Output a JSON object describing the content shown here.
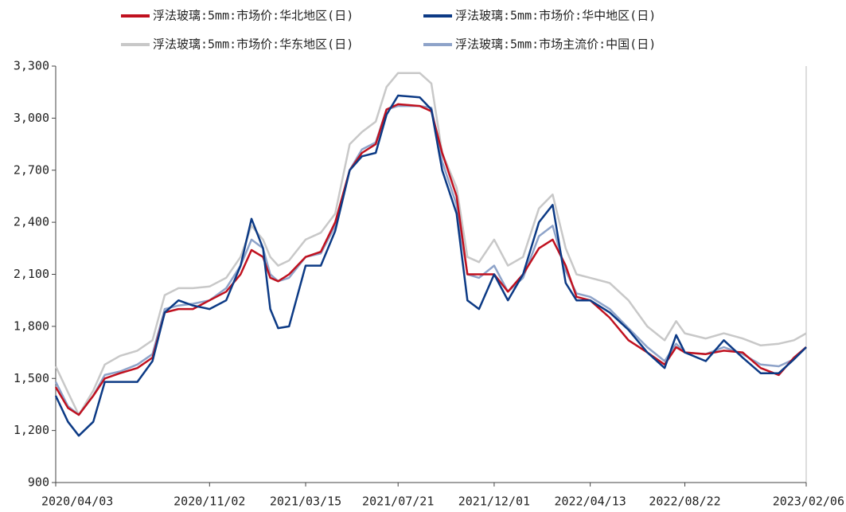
{
  "chart_data": {
    "type": "line",
    "x": [
      "2020/04/03",
      "2020/04/20",
      "2020/05/05",
      "2020/05/25",
      "2020/06/10",
      "2020/07/01",
      "2020/07/25",
      "2020/08/15",
      "2020/09/01",
      "2020/09/20",
      "2020/10/10",
      "2020/11/02",
      "2020/11/25",
      "2020/12/15",
      "2020/12/30",
      "2021/01/15",
      "2021/01/25",
      "2021/02/05",
      "2021/02/20",
      "2021/03/15",
      "2021/04/05",
      "2021/04/25",
      "2021/05/15",
      "2021/06/01",
      "2021/06/20",
      "2021/07/05",
      "2021/07/21",
      "2021/08/20",
      "2021/09/05",
      "2021/09/20",
      "2021/10/10",
      "2021/10/25",
      "2021/11/10",
      "2021/12/01",
      "2021/12/20",
      "2022/01/10",
      "2022/02/01",
      "2022/02/20",
      "2022/03/10",
      "2022/03/25",
      "2022/04/13",
      "2022/05/10",
      "2022/06/05",
      "2022/07/01",
      "2022/07/25",
      "2022/08/10",
      "2022/08/22",
      "2022/09/20",
      "2022/10/15",
      "2022/11/10",
      "2022/12/05",
      "2022/12/30",
      "2023/01/20",
      "2023/02/06"
    ],
    "series": [
      {
        "name": "浮法玻璃:5mm:市场价:华东地区(日)",
        "color": "#c8c8c8",
        "values": [
          1570,
          1420,
          1290,
          1430,
          1580,
          1630,
          1660,
          1720,
          1980,
          2020,
          2020,
          2030,
          2080,
          2200,
          2380,
          2300,
          2200,
          2150,
          2180,
          2300,
          2340,
          2450,
          2850,
          2920,
          2980,
          3180,
          3260,
          3260,
          3200,
          2800,
          2600,
          2200,
          2170,
          2300,
          2150,
          2200,
          2480,
          2560,
          2250,
          2100,
          2080,
          2050,
          1950,
          1800,
          1720,
          1830,
          1760,
          1730,
          1760,
          1730,
          1690,
          1700,
          1720,
          1760
        ]
      },
      {
        "name": "浮法玻璃:5mm:市场主流价:中国(日)",
        "color": "#8ea3c9",
        "values": [
          1480,
          1340,
          1290,
          1400,
          1520,
          1540,
          1580,
          1640,
          1900,
          1920,
          1930,
          1950,
          2020,
          2150,
          2300,
          2250,
          2100,
          2060,
          2080,
          2200,
          2220,
          2380,
          2700,
          2820,
          2860,
          3050,
          3070,
          3070,
          3060,
          2750,
          2500,
          2100,
          2080,
          2150,
          2000,
          2080,
          2320,
          2380,
          2120,
          1990,
          1970,
          1900,
          1790,
          1680,
          1600,
          1700,
          1650,
          1640,
          1680,
          1640,
          1580,
          1570,
          1610,
          1680
        ]
      },
      {
        "name": "浮法玻璃:5mm:市场价:华北地区(日)",
        "color": "#c0111f",
        "values": [
          1450,
          1330,
          1290,
          1400,
          1500,
          1530,
          1560,
          1620,
          1880,
          1900,
          1900,
          1950,
          2000,
          2100,
          2240,
          2200,
          2080,
          2060,
          2100,
          2200,
          2230,
          2400,
          2700,
          2800,
          2850,
          3050,
          3080,
          3070,
          3040,
          2800,
          2550,
          2100,
          2100,
          2100,
          2000,
          2100,
          2250,
          2300,
          2150,
          1970,
          1950,
          1850,
          1720,
          1650,
          1580,
          1680,
          1650,
          1640,
          1660,
          1650,
          1560,
          1520,
          1620,
          1680
        ]
      },
      {
        "name": "浮法玻璃:5mm:市场价:华中地区(日)",
        "color": "#0c3a85",
        "values": [
          1400,
          1250,
          1170,
          1250,
          1480,
          1480,
          1480,
          1600,
          1880,
          1950,
          1920,
          1900,
          1950,
          2150,
          2420,
          2250,
          1900,
          1790,
          1800,
          2150,
          2150,
          2350,
          2700,
          2780,
          2800,
          3020,
          3130,
          3120,
          3050,
          2700,
          2450,
          1950,
          1900,
          2100,
          1950,
          2100,
          2400,
          2500,
          2050,
          1950,
          1950,
          1880,
          1780,
          1650,
          1560,
          1750,
          1650,
          1600,
          1720,
          1620,
          1530,
          1530,
          1610,
          1680
        ]
      }
    ],
    "legend_order": [
      2,
      3,
      0,
      1
    ],
    "xlim": [
      "2020/04/03",
      "2023/02/06"
    ],
    "xticks": [
      "2020/04/03",
      "2020/11/02",
      "2021/03/15",
      "2021/07/21",
      "2021/12/01",
      "2022/04/13",
      "2022/08/22",
      "2023/02/06"
    ],
    "ylim": [
      900,
      3300
    ],
    "yticks": [
      {
        "value": 900,
        "label": "900"
      },
      {
        "value": 1200,
        "label": "1,200"
      },
      {
        "value": 1500,
        "label": "1,500"
      },
      {
        "value": 1800,
        "label": "1,800"
      },
      {
        "value": 2100,
        "label": "2,100"
      },
      {
        "value": 2400,
        "label": "2,400"
      },
      {
        "value": 2700,
        "label": "2,700"
      },
      {
        "value": 3000,
        "label": "3,000"
      },
      {
        "value": 3300,
        "label": "3,300"
      }
    ]
  }
}
